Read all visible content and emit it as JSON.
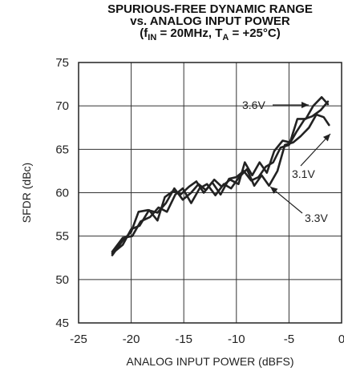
{
  "chart_data": {
    "type": "line",
    "title": {
      "line1": "SPURIOUS-FREE DYNAMIC RANGE",
      "line2": "vs. ANALOG INPUT POWER",
      "line3_open": "(f",
      "line3_sub1": "IN",
      "line3_mid": " = 20MHz, T",
      "line3_sub2": "A",
      "line3_close": " = +25°C)"
    },
    "xlabel": "ANALOG INPUT POWER (dBFS)",
    "ylabel": "SFDR (dBc)",
    "xlim": [
      -25,
      0
    ],
    "ylim": [
      45,
      75
    ],
    "xticks": [
      -25,
      -20,
      -15,
      -10,
      -5,
      0
    ],
    "yticks": [
      45,
      50,
      55,
      60,
      65,
      70,
      75
    ],
    "xtick_labels": [
      "-25",
      "-20",
      "-15",
      "-10",
      "-5",
      "0"
    ],
    "ytick_labels": [
      "45",
      "50",
      "55",
      "60",
      "65",
      "70",
      "75"
    ],
    "grid": true,
    "series": [
      {
        "name": "3.6V",
        "x": [
          -21.8,
          -20.8,
          -20.0,
          -19.3,
          -18.4,
          -17.5,
          -16.7,
          -15.9,
          -15.1,
          -14.3,
          -13.6,
          -12.9,
          -12.1,
          -11.4,
          -10.6,
          -9.8,
          -9.2,
          -8.5,
          -7.8,
          -7.1,
          -6.4,
          -5.6,
          -4.9,
          -4.2,
          -3.4,
          -2.7,
          -1.9,
          -1.3
        ],
        "values": [
          52.8,
          54.5,
          55.5,
          57.8,
          58.0,
          57.7,
          58.8,
          60.5,
          59.2,
          60.0,
          61.0,
          60.3,
          61.5,
          60.7,
          61.5,
          61.0,
          63.5,
          62.0,
          63.5,
          62.3,
          64.8,
          66.0,
          65.8,
          68.5,
          68.5,
          70.0,
          71.0,
          70.2
        ]
      },
      {
        "name": "3.1V",
        "x": [
          -21.8,
          -20.8,
          -20.0,
          -19.2,
          -18.3,
          -17.5,
          -16.8,
          -16.0,
          -15.3,
          -14.5,
          -13.8,
          -13.1,
          -12.3,
          -11.5,
          -10.7,
          -10.0,
          -9.3,
          -8.6,
          -7.9,
          -7.2,
          -6.5,
          -5.8,
          -5.0,
          -4.3,
          -3.5,
          -2.8,
          -2.0,
          -1.3
        ],
        "values": [
          53.0,
          54.0,
          55.8,
          56.2,
          58.0,
          56.8,
          59.5,
          60.2,
          59.8,
          60.7,
          61.3,
          60.0,
          61.2,
          59.8,
          61.6,
          61.8,
          62.5,
          61.4,
          61.8,
          63.0,
          63.5,
          65.2,
          65.5,
          67.0,
          68.5,
          68.8,
          69.5,
          70.5
        ]
      },
      {
        "name": "3.3V",
        "x": [
          -21.8,
          -20.8,
          -19.9,
          -19.1,
          -18.2,
          -17.4,
          -16.6,
          -15.8,
          -15.1,
          -14.3,
          -13.5,
          -12.8,
          -12.0,
          -11.2,
          -10.5,
          -9.8,
          -9.0,
          -8.3,
          -7.6,
          -6.9,
          -6.1,
          -5.4,
          -4.6,
          -3.9,
          -3.1,
          -2.4,
          -1.7,
          -1.2
        ],
        "values": [
          53.2,
          54.8,
          55.0,
          56.7,
          57.2,
          58.3,
          57.8,
          59.8,
          60.5,
          58.8,
          60.5,
          61.0,
          59.7,
          61.0,
          60.5,
          61.7,
          62.7,
          60.8,
          62.0,
          60.8,
          62.5,
          65.5,
          65.8,
          66.5,
          67.5,
          69.0,
          68.7,
          67.8
        ]
      }
    ],
    "annotations": [
      {
        "text": "3.6V",
        "series": "3.6V"
      },
      {
        "text": "3.1V",
        "series": "3.1V"
      },
      {
        "text": "3.3V",
        "series": "3.3V"
      }
    ]
  }
}
